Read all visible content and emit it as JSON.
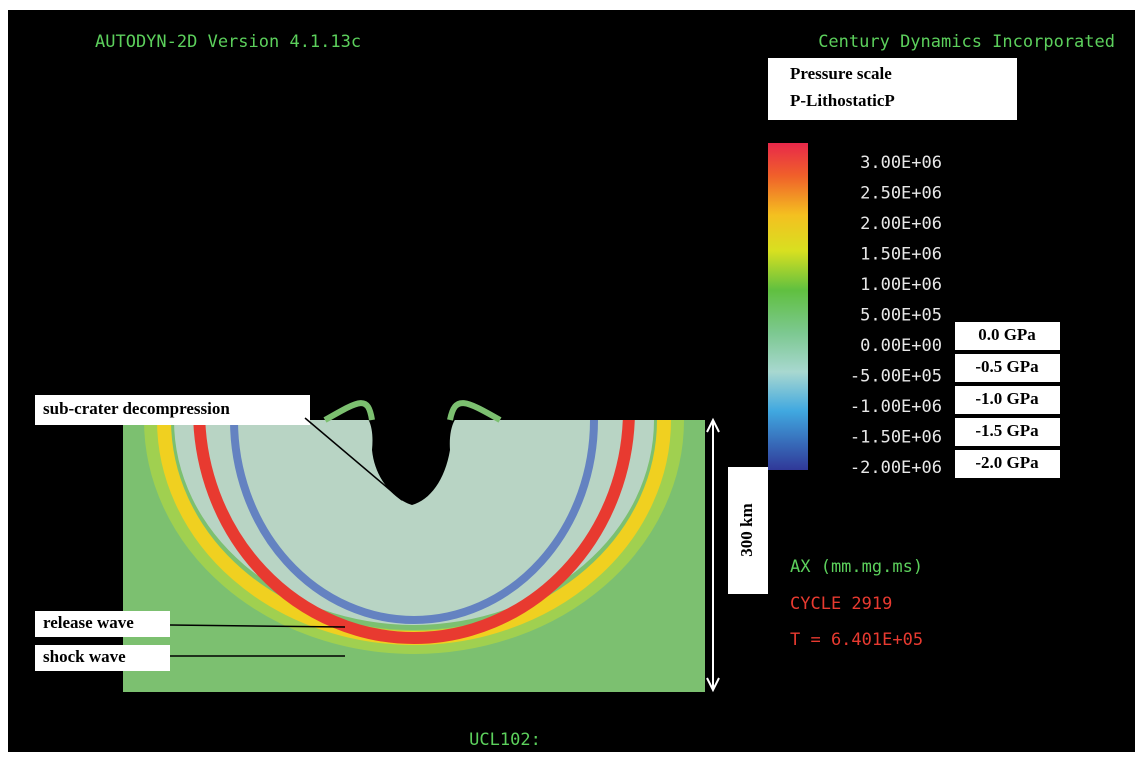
{
  "header": {
    "left": "AUTODYN-2D Version 4.1.13c",
    "right": "Century Dynamics Incorporated"
  },
  "legend": {
    "title": [
      "Pressure scale",
      "P-LithostaticP"
    ],
    "ticks": [
      "3.00E+06",
      "2.50E+06",
      "2.00E+06",
      "1.50E+06",
      "1.00E+06",
      "5.00E+05",
      "0.00E+00",
      "-5.00E+05",
      "-1.00E+06",
      "-1.50E+06",
      "-2.00E+06"
    ],
    "gpa": [
      "0.0 GPa",
      "-0.5 GPa",
      "-1.0 GPa",
      "-1.5 GPa",
      "-2.0 GPa"
    ]
  },
  "annotations": {
    "decompression": "sub-crater decompression",
    "release": "release wave",
    "shock": "shock wave",
    "scale": "300 km"
  },
  "status": {
    "units": "AX (mm.mg.ms)",
    "cycle": "CYCLE 2919",
    "time": "T = 6.401E+05"
  },
  "footer": "UCL102:"
}
